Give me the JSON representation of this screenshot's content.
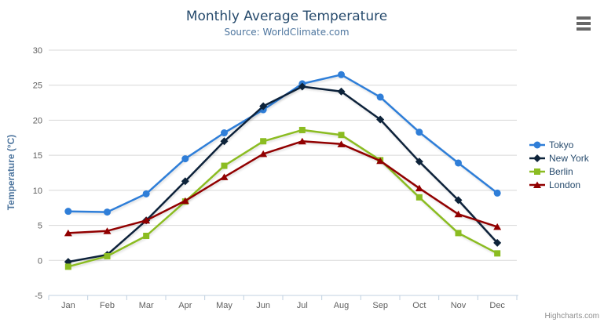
{
  "header": {
    "title": "Monthly Average Temperature",
    "subtitle": "Source: WorldClimate.com"
  },
  "credits": "Highcharts.com",
  "toolbar": {
    "context_menu_icon": "hamburger-icon"
  },
  "colors": {
    "title": "#274b6d",
    "subtitle": "#4d759e",
    "axis_label": "#606060",
    "axis_title": "#4d759e",
    "gridline": "#d8d8d8",
    "axis_line": "#c0d0e0",
    "legend_text": "#274b6d",
    "credits": "#909090",
    "menu_icon": "#666666"
  },
  "chart_data": {
    "type": "line",
    "title": "Monthly Average Temperature",
    "subtitle": "Source: WorldClimate.com",
    "categories": [
      "Jan",
      "Feb",
      "Mar",
      "Apr",
      "May",
      "Jun",
      "Jul",
      "Aug",
      "Sep",
      "Oct",
      "Nov",
      "Dec"
    ],
    "xlabel": "",
    "ylabel": "Temperature (°C)",
    "ylim": [
      -5,
      30
    ],
    "ytick_step": 5,
    "grid": true,
    "legend_position": "right",
    "series": [
      {
        "name": "Tokyo",
        "color": "#2f7ed8",
        "marker": "circle",
        "values": [
          7.0,
          6.9,
          9.5,
          14.5,
          18.2,
          21.5,
          25.2,
          26.5,
          23.3,
          18.3,
          13.9,
          9.6
        ]
      },
      {
        "name": "New York",
        "color": "#0d233a",
        "marker": "diamond",
        "values": [
          -0.2,
          0.8,
          5.7,
          11.3,
          17.0,
          22.0,
          24.8,
          24.1,
          20.1,
          14.1,
          8.6,
          2.5
        ]
      },
      {
        "name": "Berlin",
        "color": "#8bbc21",
        "marker": "square",
        "values": [
          -0.9,
          0.6,
          3.5,
          8.4,
          13.5,
          17.0,
          18.6,
          17.9,
          14.3,
          9.0,
          3.9,
          1.0
        ]
      },
      {
        "name": "London",
        "color": "#910000",
        "marker": "triangle",
        "values": [
          3.9,
          4.2,
          5.7,
          8.5,
          11.9,
          15.2,
          17.0,
          16.6,
          14.2,
          10.3,
          6.6,
          4.8
        ]
      }
    ]
  }
}
